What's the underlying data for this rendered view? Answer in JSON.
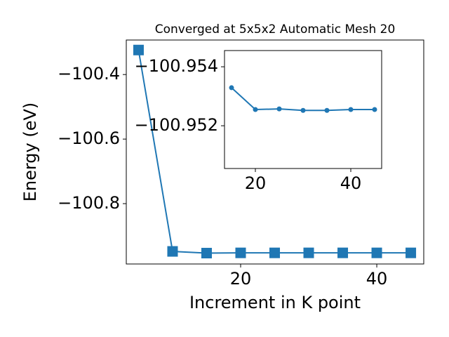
{
  "chart_data": [
    {
      "type": "line",
      "title": "Converged at 5x5x2 Automatic Mesh 20",
      "x_label": "Increment in K point",
      "y_label": "Energy (eV)",
      "x": [
        5,
        10,
        15,
        20,
        25,
        30,
        35,
        40,
        45
      ],
      "series": [
        {
          "color": "#1f77b4",
          "marker": "square",
          "values": [
            -100.324,
            -100.948,
            -100.95329,
            -100.95255,
            -100.95257,
            -100.95252,
            -100.95252,
            -100.95255,
            -100.95255
          ]
        }
      ],
      "xlim": [
        3.2,
        46.9
      ],
      "xticks": [
        20,
        40
      ],
      "ylim": [
        -100.987,
        -100.293
      ],
      "yticks": [
        {
          "value": -100.8,
          "label": "−100.8"
        },
        {
          "value": -100.6,
          "label": "−100.6"
        },
        {
          "value": -100.4,
          "label": "−100.4"
        }
      ],
      "grid": false
    },
    {
      "type": "line",
      "x": [
        15,
        20,
        25,
        30,
        35,
        40,
        45
      ],
      "series": [
        {
          "color": "#1f77b4",
          "marker": "circle",
          "values": [
            -100.95329,
            -100.95255,
            -100.95257,
            -100.95252,
            -100.95252,
            -100.95255,
            -100.95255
          ]
        }
      ],
      "xlim": [
        13.53,
        46.47
      ],
      "xticks": [
        20,
        40
      ],
      "ylim": [
        -100.95055,
        -100.95455
      ],
      "yticks": [
        {
          "value": -100.952,
          "label": "−100.952"
        },
        {
          "value": -100.954,
          "label": "−100.954"
        }
      ],
      "grid": false
    }
  ]
}
